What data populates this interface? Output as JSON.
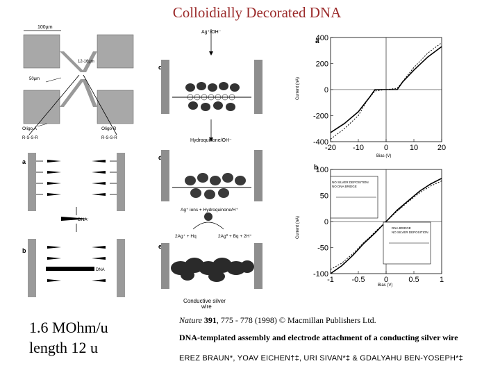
{
  "slide": {
    "title": "Colloidially Decorated DNA",
    "caption_line1": "1.6 MOhm/u",
    "caption_line2": "length 12 u",
    "ref_journal": "Nature",
    "ref_volume": "391",
    "ref_rest": ", 775 - 778 (1998) © Macmillan Publishers Ltd.",
    "description": "DNA-templated assembly and electrode attachment of a conducting silver wire",
    "authors": "EREZ BRAUN*, YOAV EICHEN†‡, URI SIVAN*‡ & GDALYAHU BEN-YOSEPH*‡"
  },
  "panel_left": {
    "width_label": "100µm",
    "gap_label": "12-16µm",
    "pad_label": "50µm",
    "oligo_a": "Oligo A",
    "oligo_b": "Oligo B",
    "seq_a": "R-S-S-R",
    "seq_b": "R-S-S-R",
    "label_a": "a",
    "label_b": "b",
    "dna": "DNA",
    "dna2": "DNA"
  },
  "panel_mid": {
    "top_reagent": "Ag⁺/OH⁻",
    "label_c": "c",
    "label_d": "d",
    "label_e": "e",
    "hq_reagent": "Hydroquinone/OH⁻",
    "ion_reagent": "Ag⁺ ions + Hydroquinone/H⁺",
    "reaction_left": "2Ag⁺ + Hq",
    "reaction_right": "2Ag⁰ + Bq + 2H⁺",
    "wire_label_1": "Conductive silver",
    "wire_label_2": "wire"
  },
  "panel_right": {
    "label_a": "a",
    "label_b": "b",
    "inset_top_1": "NO SILVER DEPOSITION",
    "inset_top_2": "NO DNA BRIDGE",
    "inset_bot_1": "DNA BRIDGE",
    "inset_bot_2": "NO SILVER DEPOSITION",
    "ylabel_a": "Current (nA)",
    "ylabel_b": "Current (nA)",
    "xlabel_a": "Bias (V)",
    "xlabel_b": "Bias (V)"
  },
  "chart_data": [
    {
      "type": "line",
      "title": "",
      "xlabel": "Bias (V)",
      "ylabel": "Current (nA)",
      "xlim": [
        -20,
        20
      ],
      "ylim": [
        -400,
        400
      ],
      "x_ticks": [
        "-20",
        "-10",
        "0",
        "10",
        "20"
      ],
      "y_ticks": [
        "400",
        "200",
        "0",
        "-200",
        "-400"
      ],
      "series": [
        {
          "style": "solid",
          "x": [
            -20,
            -15,
            -10,
            -6,
            -4,
            0,
            4,
            6,
            10,
            15,
            20
          ],
          "y": [
            -330,
            -260,
            -170,
            -60,
            0,
            0,
            0,
            60,
            150,
            250,
            330
          ]
        },
        {
          "style": "dashed",
          "x": [
            -20,
            -15,
            -10,
            -7,
            -4,
            0,
            4,
            7,
            10,
            15,
            20
          ],
          "y": [
            -380,
            -300,
            -200,
            -90,
            -10,
            0,
            10,
            90,
            170,
            280,
            360
          ]
        }
      ]
    },
    {
      "type": "line",
      "title": "",
      "xlabel": "Bias (V)",
      "ylabel": "Current (nA)",
      "xlim": [
        -1,
        1
      ],
      "ylim": [
        -100,
        100
      ],
      "x_ticks": [
        "-1",
        "-0.5",
        "0",
        "0.5",
        "1"
      ],
      "y_ticks": [
        "100",
        "50",
        "0",
        "-50",
        "-100"
      ],
      "series": [
        {
          "style": "solid",
          "x": [
            -1,
            -0.8,
            -0.6,
            -0.4,
            -0.2,
            0,
            0.2,
            0.4,
            0.6,
            0.8,
            1
          ],
          "y": [
            -100,
            -85,
            -65,
            -42,
            -22,
            0,
            22,
            40,
            58,
            72,
            83
          ]
        },
        {
          "style": "dashed",
          "x": [
            -1,
            -0.8,
            -0.6,
            -0.4,
            -0.2,
            0,
            0.2,
            0.4,
            0.6,
            0.8,
            1
          ],
          "y": [
            -92,
            -80,
            -62,
            -40,
            -20,
            0,
            20,
            38,
            55,
            68,
            78
          ]
        }
      ]
    }
  ]
}
